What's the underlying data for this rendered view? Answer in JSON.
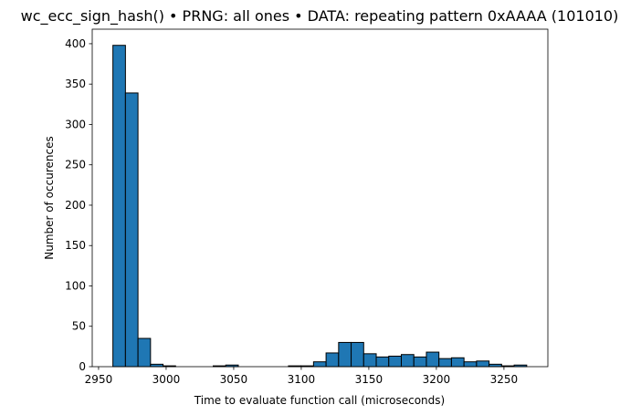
{
  "chart_data": {
    "type": "histogram",
    "title": "wc_ecc_sign_hash() • PRNG: all ones • DATA: repeating pattern 0xAAAA (101010)",
    "x_label": "Time to evaluate function call (microseconds)",
    "y_label": "Number of occurences",
    "bins": [
      2960.6,
      2969.88,
      2979.16,
      2988.44,
      2997.72,
      3007,
      3016.28,
      3025.56,
      3034.84,
      3044.12,
      3053.4,
      3062.68,
      3071.96,
      3081.24,
      3090.52,
      3099.8,
      3109.08,
      3118.36,
      3127.64,
      3136.92,
      3146.2,
      3155.48,
      3164.76,
      3174.04,
      3183.32,
      3192.6,
      3201.88,
      3211.16,
      3220.44,
      3229.72,
      3239,
      3248.28,
      3257.56,
      3266.84
    ],
    "values": [
      398,
      339,
      35,
      3,
      1,
      0,
      0,
      0,
      1,
      2,
      0,
      0,
      0,
      0,
      1,
      1,
      6,
      17,
      30,
      30,
      16,
      12,
      13,
      15,
      12,
      18,
      10,
      11,
      6,
      7,
      3,
      1,
      2
    ],
    "color": "#1f77b4",
    "edge_color": "#000000",
    "xlim": [
      2945.3,
      3282.5
    ],
    "ylim": [
      0,
      418
    ],
    "xticks": [
      2950,
      3000,
      3050,
      3100,
      3150,
      3200,
      3250
    ],
    "yticks": [
      0,
      50,
      100,
      150,
      200,
      250,
      300,
      350,
      400
    ],
    "grid": false
  }
}
